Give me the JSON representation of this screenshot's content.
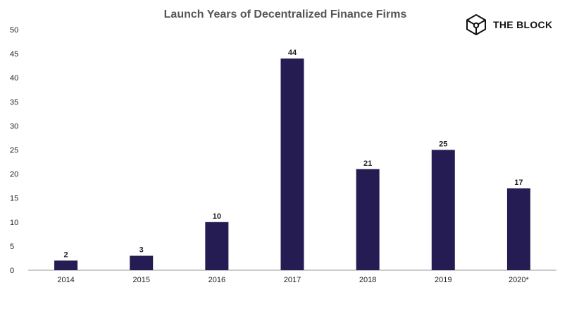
{
  "brand": {
    "name": "THE BLOCK",
    "logo_icon": "hexagon-cube-icon"
  },
  "colors": {
    "bar": "#251c53",
    "axis": "#999999",
    "text": "#222222"
  },
  "chart_data": {
    "type": "bar",
    "title": "Launch Years of Decentralized Finance Firms",
    "xlabel": "",
    "ylabel": "",
    "categories": [
      "2014",
      "2015",
      "2016",
      "2017",
      "2018",
      "2019",
      "2020*"
    ],
    "values": [
      2,
      3,
      10,
      44,
      21,
      25,
      17
    ],
    "yticks": [
      0,
      5,
      10,
      15,
      20,
      25,
      30,
      35,
      40,
      45,
      50
    ],
    "ylim": [
      0,
      50
    ],
    "grid": false,
    "legend": "none",
    "data_labels": true
  }
}
